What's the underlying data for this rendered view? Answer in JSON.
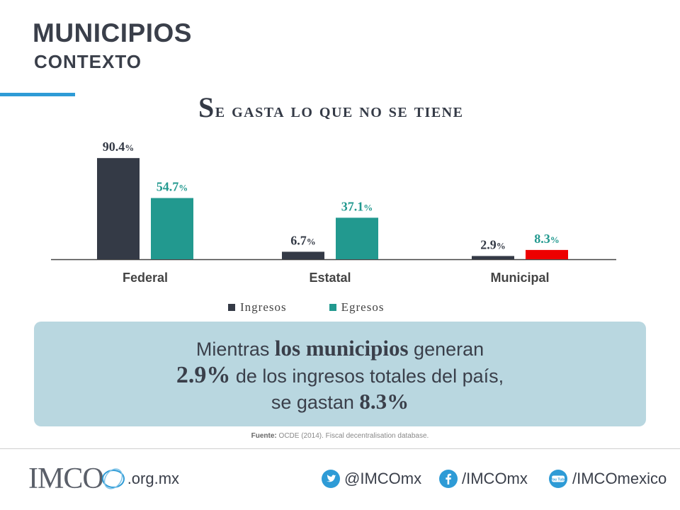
{
  "header": {
    "title": "MUNICIPIOS",
    "subtitle": "CONTEXTO"
  },
  "slide_title": {
    "first_letter": "S",
    "rest": "e gasta lo que no se tiene"
  },
  "chart_data": {
    "type": "bar",
    "categories": [
      "Federal",
      "Estatal",
      "Municipal"
    ],
    "series": [
      {
        "name": "Ingresos",
        "values": [
          90.4,
          6.7,
          2.9
        ],
        "color": "#343a46",
        "labels": [
          "90.4",
          "6.7",
          "2.9"
        ],
        "label_color": "#343a46"
      },
      {
        "name": "Egresos",
        "values": [
          54.7,
          37.1,
          8.3
        ],
        "color": "#22998f",
        "labels": [
          "54.7",
          "37.1",
          "8.3"
        ],
        "label_color": "#22998f",
        "highlight": {
          "index": 2,
          "color": "#ee0000"
        }
      }
    ],
    "value_suffix": "%",
    "ylim": [
      0,
      100
    ],
    "legend_position": "bottom"
  },
  "callout": {
    "l1_a": "Mientras ",
    "l1_em": "los municipios",
    "l1_b": " generan",
    "l2_em": "2.9%",
    "l2_b": " de los ingresos totales del país,",
    "l3_a": "se gastan ",
    "l3_em": "8.3%"
  },
  "source": {
    "label": "Fuente:",
    "text": "OCDE (2014). Fiscal decentralisation database."
  },
  "footer": {
    "logo_text": "IMCO",
    "domain": ".org.mx",
    "twitter": "@IMCOmx",
    "facebook": "/IMCOmx",
    "youtube": "/IMCOmexico",
    "youtube_icon_text": "You Tube",
    "icon_color": "#2e9bd6"
  }
}
